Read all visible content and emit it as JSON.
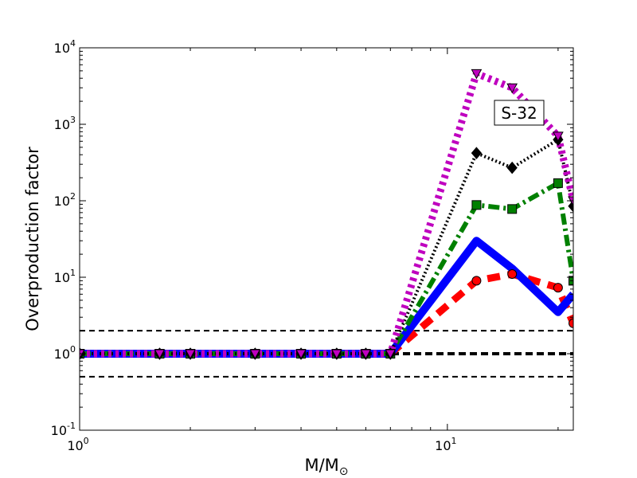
{
  "chart_data": {
    "type": "line",
    "xlabel": "M/M",
    "xlabel_sub": "⊙",
    "ylabel": "Overproduction factor",
    "xscale": "log",
    "yscale": "log",
    "xlim": [
      1,
      22
    ],
    "ylim": [
      0.1,
      10000
    ],
    "x_ticks": [
      {
        "base": "10",
        "exp": "0",
        "value": 1
      },
      {
        "base": "10",
        "exp": "1",
        "value": 10
      }
    ],
    "y_ticks": [
      {
        "base": "10",
        "exp": "-1",
        "value": 0.1
      },
      {
        "base": "10",
        "exp": "0",
        "value": 1
      },
      {
        "base": "10",
        "exp": "1",
        "value": 10
      },
      {
        "base": "10",
        "exp": "2",
        "value": 100
      },
      {
        "base": "10",
        "exp": "3",
        "value": 1000
      },
      {
        "base": "10",
        "exp": "4",
        "value": 10000
      }
    ],
    "annotation": "S-32",
    "reference_lines": [
      {
        "y": 2.0,
        "style": "dashed",
        "weight": "thin",
        "color": "#000000"
      },
      {
        "y": 1.0,
        "style": "dashed",
        "weight": "thick",
        "color": "#000000"
      },
      {
        "y": 0.5,
        "style": "dashed",
        "weight": "thin",
        "color": "#000000"
      }
    ],
    "series": [
      {
        "color": "#ff0000",
        "line_style": "dashed",
        "marker": "circle",
        "x": [
          1,
          1.65,
          2,
          3,
          4,
          5,
          6,
          7,
          12,
          15,
          20,
          22
        ],
        "y": [
          1,
          1,
          1,
          1,
          1,
          1,
          1,
          1,
          9,
          11,
          7.3,
          2.5
        ]
      },
      {
        "color": "#0000ff",
        "line_style": "solid",
        "marker": "none",
        "x": [
          1,
          1.65,
          2,
          3,
          4,
          5,
          6,
          7,
          12,
          15,
          20,
          22
        ],
        "y": [
          1,
          1,
          1,
          1,
          1,
          1,
          1,
          1,
          30,
          13,
          3.5,
          6
        ]
      },
      {
        "color": "#008000",
        "line_style": "dashdot",
        "marker": "square",
        "x": [
          1,
          1.65,
          2,
          3,
          4,
          5,
          6,
          7,
          12,
          15,
          20,
          22
        ],
        "y": [
          1,
          1,
          1,
          1,
          1,
          1,
          1,
          1,
          88,
          78,
          170,
          9
        ]
      },
      {
        "color": "#000000",
        "line_style": "dotted",
        "marker": "diamond",
        "x": [
          1,
          1.65,
          2,
          3,
          4,
          5,
          6,
          7,
          12,
          15,
          20,
          22
        ],
        "y": [
          1,
          1,
          1,
          1,
          1,
          1,
          1,
          1,
          420,
          270,
          630,
          85
        ]
      },
      {
        "color": "#bf00bf",
        "line_style": "dotted",
        "marker": "triangle-down",
        "x": [
          1,
          1.65,
          2,
          3,
          4,
          5,
          6,
          7,
          12,
          15,
          20,
          22
        ],
        "y": [
          1,
          1,
          1,
          1,
          1,
          1,
          1,
          1,
          4600,
          3000,
          700,
          100
        ]
      }
    ]
  }
}
